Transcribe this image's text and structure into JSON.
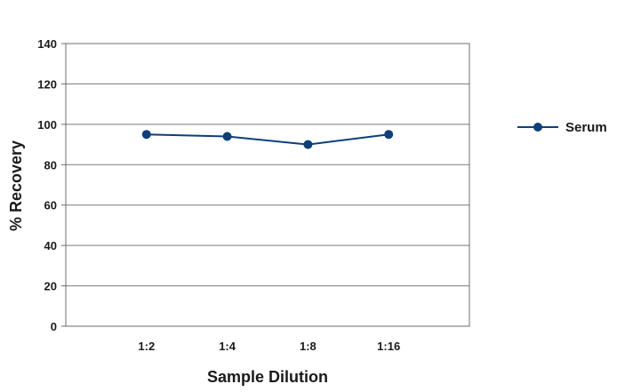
{
  "chart_data": {
    "type": "line",
    "title": "",
    "xlabel": "Sample Dilution",
    "ylabel": "% Recovery",
    "categories": [
      "1:2",
      "1:4",
      "1:8",
      "1:16"
    ],
    "series": [
      {
        "name": "Serum",
        "values": [
          95,
          94,
          90,
          95
        ],
        "color": "#0d3f7a"
      }
    ],
    "ylim": [
      0,
      140
    ],
    "yticks": [
      0,
      20,
      40,
      60,
      80,
      100,
      120,
      140
    ],
    "grid": "horizontal",
    "legend_position": "right"
  }
}
